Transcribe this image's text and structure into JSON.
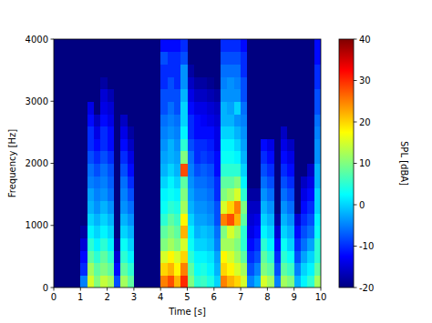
{
  "chart_data": {
    "type": "heatmap",
    "x_label": "Time [s]",
    "y_label": "Frequency [Hz]",
    "xlim": [
      0,
      10
    ],
    "ylim": [
      0,
      4000
    ],
    "xticks": [
      0,
      1,
      2,
      3,
      4,
      5,
      6,
      7,
      8,
      9,
      10
    ],
    "yticks": [
      0,
      1000,
      2000,
      3000,
      4000
    ],
    "x_bins": [
      0,
      0.25,
      0.5,
      0.75,
      1,
      1.25,
      1.5,
      1.75,
      2,
      2.25,
      2.5,
      2.75,
      3,
      3.25,
      3.5,
      3.75,
      4,
      4.25,
      4.5,
      4.75,
      5,
      5.25,
      5.5,
      5.75,
      6,
      6.25,
      6.5,
      6.75,
      7,
      7.25,
      7.5,
      7.75,
      8,
      8.25,
      8.5,
      8.75,
      9,
      9.25,
      9.5,
      9.75,
      10
    ],
    "y_bins": [
      0,
      200,
      400,
      600,
      800,
      1000,
      1200,
      1400,
      1600,
      1800,
      2000,
      2200,
      2400,
      2600,
      2800,
      3000,
      3200,
      3400,
      3600,
      3800,
      4000
    ],
    "cells": [
      [
        -20,
        -20,
        -20,
        -20,
        -20,
        -20,
        -20,
        -20,
        -20,
        -20,
        -20,
        -20,
        -20,
        -20,
        -20,
        -20,
        -20,
        -20,
        -20,
        -20
      ],
      [
        -20,
        -20,
        -20,
        -20,
        -20,
        -20,
        -20,
        -20,
        -20,
        -20,
        -20,
        -20,
        -20,
        -20,
        -20,
        -20,
        -20,
        -20,
        -20,
        -20
      ],
      [
        -20,
        -20,
        -20,
        -20,
        -20,
        -20,
        -20,
        -20,
        -20,
        -20,
        -20,
        -20,
        -20,
        -20,
        -20,
        -20,
        -20,
        -20,
        -20,
        -20
      ],
      [
        -20,
        -20,
        -20,
        -20,
        -20,
        -20,
        -20,
        -20,
        -20,
        -20,
        -20,
        -20,
        -20,
        -20,
        -20,
        -20,
        -20,
        -20,
        -20,
        -20
      ],
      [
        -5,
        -10,
        -12,
        -15,
        -18,
        -20,
        -20,
        -20,
        -20,
        -20,
        -20,
        -20,
        -20,
        -20,
        -20,
        -20,
        -20,
        -20,
        -20,
        -20
      ],
      [
        15,
        12,
        8,
        5,
        2,
        0,
        -2,
        -3,
        -5,
        -6,
        -8,
        -10,
        -10,
        -12,
        -14,
        -20,
        -20,
        -20,
        -20,
        -20
      ],
      [
        10,
        8,
        5,
        2,
        0,
        -2,
        -4,
        -5,
        -6,
        -8,
        -10,
        -12,
        -14,
        -16,
        -20,
        -20,
        -20,
        -20,
        -20,
        -20
      ],
      [
        14,
        10,
        8,
        5,
        2,
        0,
        -2,
        -4,
        -5,
        -6,
        -8,
        -10,
        -10,
        -12,
        -14,
        -15,
        -18,
        -20,
        -20,
        -20
      ],
      [
        12,
        8,
        5,
        2,
        0,
        -2,
        -4,
        -6,
        -7,
        -8,
        -10,
        -12,
        -12,
        -14,
        -15,
        -17,
        -20,
        -20,
        -20,
        -20
      ],
      [
        -8,
        -12,
        -15,
        -18,
        -20,
        -20,
        -20,
        -20,
        -20,
        -20,
        -20,
        -20,
        -20,
        -20,
        -20,
        -20,
        -20,
        -20,
        -20,
        -20
      ],
      [
        12,
        8,
        5,
        3,
        0,
        -2,
        -4,
        -5,
        -6,
        -8,
        -10,
        -12,
        -14,
        -16,
        -20,
        -20,
        -20,
        -20,
        -20,
        -20
      ],
      [
        8,
        5,
        2,
        0,
        -2,
        -4,
        -6,
        -8,
        -10,
        -12,
        -14,
        -16,
        -18,
        -20,
        -20,
        -20,
        -20,
        -20,
        -20,
        -20
      ],
      [
        -20,
        -20,
        -20,
        -20,
        -20,
        -20,
        -20,
        -20,
        -20,
        -20,
        -20,
        -20,
        -20,
        -20,
        -20,
        -20,
        -20,
        -20,
        -20,
        -20
      ],
      [
        -20,
        -20,
        -20,
        -20,
        -20,
        -20,
        -20,
        -20,
        -20,
        -20,
        -20,
        -20,
        -20,
        -20,
        -20,
        -20,
        -20,
        -20,
        -20,
        -20
      ],
      [
        -20,
        -20,
        -20,
        -20,
        -20,
        -20,
        -20,
        -20,
        -20,
        -20,
        -20,
        -20,
        -20,
        -20,
        -20,
        -20,
        -20,
        -20,
        -20,
        -20
      ],
      [
        -20,
        -20,
        -20,
        -20,
        -20,
        -20,
        -20,
        -20,
        -20,
        -20,
        -20,
        -20,
        -20,
        -20,
        -20,
        -20,
        -20,
        -20,
        -20,
        -20
      ],
      [
        25,
        20,
        15,
        10,
        8,
        5,
        3,
        2,
        0,
        -2,
        -3,
        -4,
        -5,
        -6,
        -8,
        -8,
        -10,
        -10,
        -8,
        -12
      ],
      [
        28,
        22,
        18,
        12,
        10,
        8,
        5,
        3,
        2,
        0,
        -2,
        -2,
        -4,
        -5,
        -6,
        -8,
        -8,
        -10,
        -10,
        -12
      ],
      [
        22,
        18,
        15,
        10,
        8,
        6,
        4,
        2,
        0,
        -2,
        -3,
        -4,
        -5,
        -6,
        -8,
        -8,
        -10,
        -10,
        -10,
        -12
      ],
      [
        30,
        25,
        20,
        15,
        22,
        18,
        12,
        10,
        8,
        28,
        10,
        5,
        2,
        0,
        0,
        -2,
        -4,
        -4,
        -8,
        -10
      ],
      [
        10,
        8,
        5,
        3,
        2,
        0,
        -2,
        -3,
        -4,
        -5,
        -6,
        -8,
        -10,
        -10,
        -12,
        -14,
        -16,
        -18,
        -20,
        -20
      ],
      [
        5,
        3,
        2,
        0,
        -2,
        -3,
        -4,
        -5,
        -6,
        -8,
        -10,
        -10,
        -12,
        -12,
        -14,
        -16,
        -18,
        -20,
        -20,
        -20
      ],
      [
        6,
        4,
        2,
        0,
        -1,
        -3,
        -4,
        -5,
        -6,
        -7,
        -9,
        -10,
        -12,
        -13,
        -14,
        -16,
        -18,
        -20,
        -20,
        -20
      ],
      [
        4,
        2,
        1,
        -1,
        -2,
        -4,
        -5,
        -6,
        -7,
        -8,
        -10,
        -11,
        -12,
        -14,
        -15,
        -17,
        -19,
        -20,
        -20,
        -20
      ],
      [
        0,
        -2,
        -3,
        -5,
        -6,
        -8,
        -8,
        -10,
        -10,
        -12,
        -12,
        -14,
        -14,
        -15,
        -16,
        -18,
        -20,
        -20,
        -20,
        -20
      ],
      [
        25,
        20,
        18,
        12,
        10,
        25,
        15,
        10,
        8,
        5,
        3,
        2,
        0,
        -2,
        -2,
        -4,
        -5,
        -6,
        -8,
        -10
      ],
      [
        22,
        18,
        15,
        12,
        15,
        28,
        20,
        12,
        8,
        5,
        3,
        2,
        0,
        -2,
        -3,
        -4,
        -4,
        -6,
        -8,
        -10
      ],
      [
        20,
        15,
        12,
        10,
        12,
        22,
        25,
        15,
        10,
        5,
        2,
        0,
        -2,
        -4,
        0,
        -4,
        -5,
        -6,
        -8,
        -10
      ],
      [
        15,
        12,
        8,
        5,
        5,
        8,
        10,
        5,
        2,
        0,
        -2,
        -3,
        -4,
        -5,
        -6,
        -8,
        -8,
        -10,
        -10,
        -12
      ],
      [
        -5,
        -8,
        -10,
        -12,
        -14,
        -15,
        -16,
        -18,
        -20,
        -20,
        -20,
        -20,
        -20,
        -20,
        -20,
        -20,
        -20,
        -20,
        -20,
        -20
      ],
      [
        -2,
        -5,
        -8,
        -10,
        -12,
        -14,
        -16,
        -18,
        -20,
        -20,
        -20,
        -20,
        -20,
        -20,
        -20,
        -20,
        -20,
        -20,
        -20,
        -20
      ],
      [
        15,
        10,
        8,
        5,
        2,
        0,
        -2,
        -4,
        -6,
        -8,
        -10,
        -12,
        -20,
        -20,
        -20,
        -20,
        -20,
        -20,
        -20,
        -20
      ],
      [
        12,
        8,
        5,
        2,
        0,
        -2,
        -4,
        -6,
        -8,
        -10,
        -12,
        -14,
        -20,
        -20,
        -20,
        -20,
        -20,
        -20,
        -20,
        -20
      ],
      [
        -5,
        -8,
        -10,
        -12,
        -15,
        -18,
        -20,
        -20,
        -20,
        -20,
        -20,
        -20,
        -20,
        -20,
        -20,
        -20,
        -20,
        -20,
        -20,
        -20
      ],
      [
        12,
        8,
        5,
        3,
        0,
        -2,
        -4,
        -6,
        -8,
        -10,
        -12,
        -14,
        -16,
        -20,
        -20,
        -20,
        -20,
        -20,
        -20,
        -20
      ],
      [
        10,
        6,
        3,
        0,
        -2,
        -4,
        -6,
        -8,
        -10,
        -12,
        -14,
        -16,
        -20,
        -20,
        -20,
        -20,
        -20,
        -20,
        -20,
        -20
      ],
      [
        -2,
        -5,
        -8,
        -10,
        -12,
        -15,
        -20,
        -20,
        -20,
        -20,
        -20,
        -20,
        -20,
        -20,
        -20,
        -20,
        -20,
        -20,
        -20,
        -20
      ],
      [
        2,
        0,
        -3,
        -6,
        -8,
        -10,
        -12,
        -14,
        -16,
        -20,
        -20,
        -20,
        -20,
        -20,
        -20,
        -20,
        -20,
        -20,
        -20,
        -20
      ],
      [
        5,
        2,
        0,
        -3,
        -6,
        -8,
        -10,
        -12,
        -14,
        -16,
        -20,
        -20,
        -20,
        -20,
        -20,
        -20,
        -20,
        -20,
        -20,
        -20
      ],
      [
        12,
        8,
        5,
        5,
        3,
        2,
        0,
        0,
        -2,
        -2,
        -4,
        -4,
        -5,
        -6,
        -8,
        -8,
        -10,
        -10,
        -12,
        -12
      ]
    ],
    "colorbar": {
      "label": "SPL [dBA]",
      "range": [
        -20,
        40
      ],
      "ticks": [
        -20,
        -10,
        0,
        10,
        20,
        30,
        40
      ]
    }
  }
}
